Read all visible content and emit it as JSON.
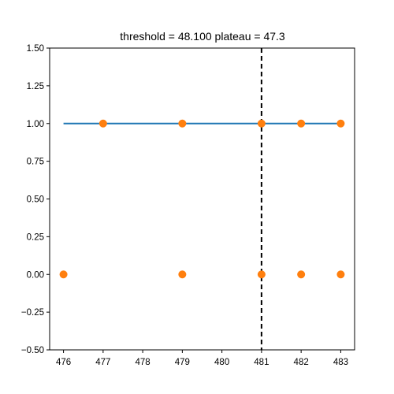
{
  "chart_data": {
    "type": "scatter",
    "title": "threshold = 48.100 plateau = 47.3",
    "xlabel": "",
    "ylabel": "",
    "xlim": [
      475.65,
      483.35
    ],
    "ylim": [
      -0.5,
      1.5
    ],
    "xticks": [
      476,
      477,
      478,
      479,
      480,
      481,
      482,
      483
    ],
    "yticks": [
      -0.5,
      -0.25,
      0.0,
      0.25,
      0.5,
      0.75,
      1.0,
      1.25,
      1.5
    ],
    "ytick_labels": [
      "−0.50",
      "−0.25",
      "0.00",
      "0.25",
      "0.50",
      "0.75",
      "1.00",
      "1.25",
      "1.50"
    ],
    "grid": false,
    "series": [
      {
        "kind": "line",
        "color": "#1f77b4",
        "x": [
          476,
          483
        ],
        "y": [
          1.0,
          1.0
        ]
      },
      {
        "kind": "scatter",
        "color": "#ff7f0e",
        "points": [
          [
            476,
            0
          ],
          [
            477,
            1
          ],
          [
            479,
            1
          ],
          [
            479,
            0
          ],
          [
            481,
            1
          ],
          [
            481,
            0
          ],
          [
            482,
            1
          ],
          [
            482,
            0
          ],
          [
            483,
            1
          ],
          [
            483,
            0
          ]
        ]
      }
    ],
    "vline": {
      "x": 481,
      "style": "dashed",
      "color": "#000000"
    }
  }
}
